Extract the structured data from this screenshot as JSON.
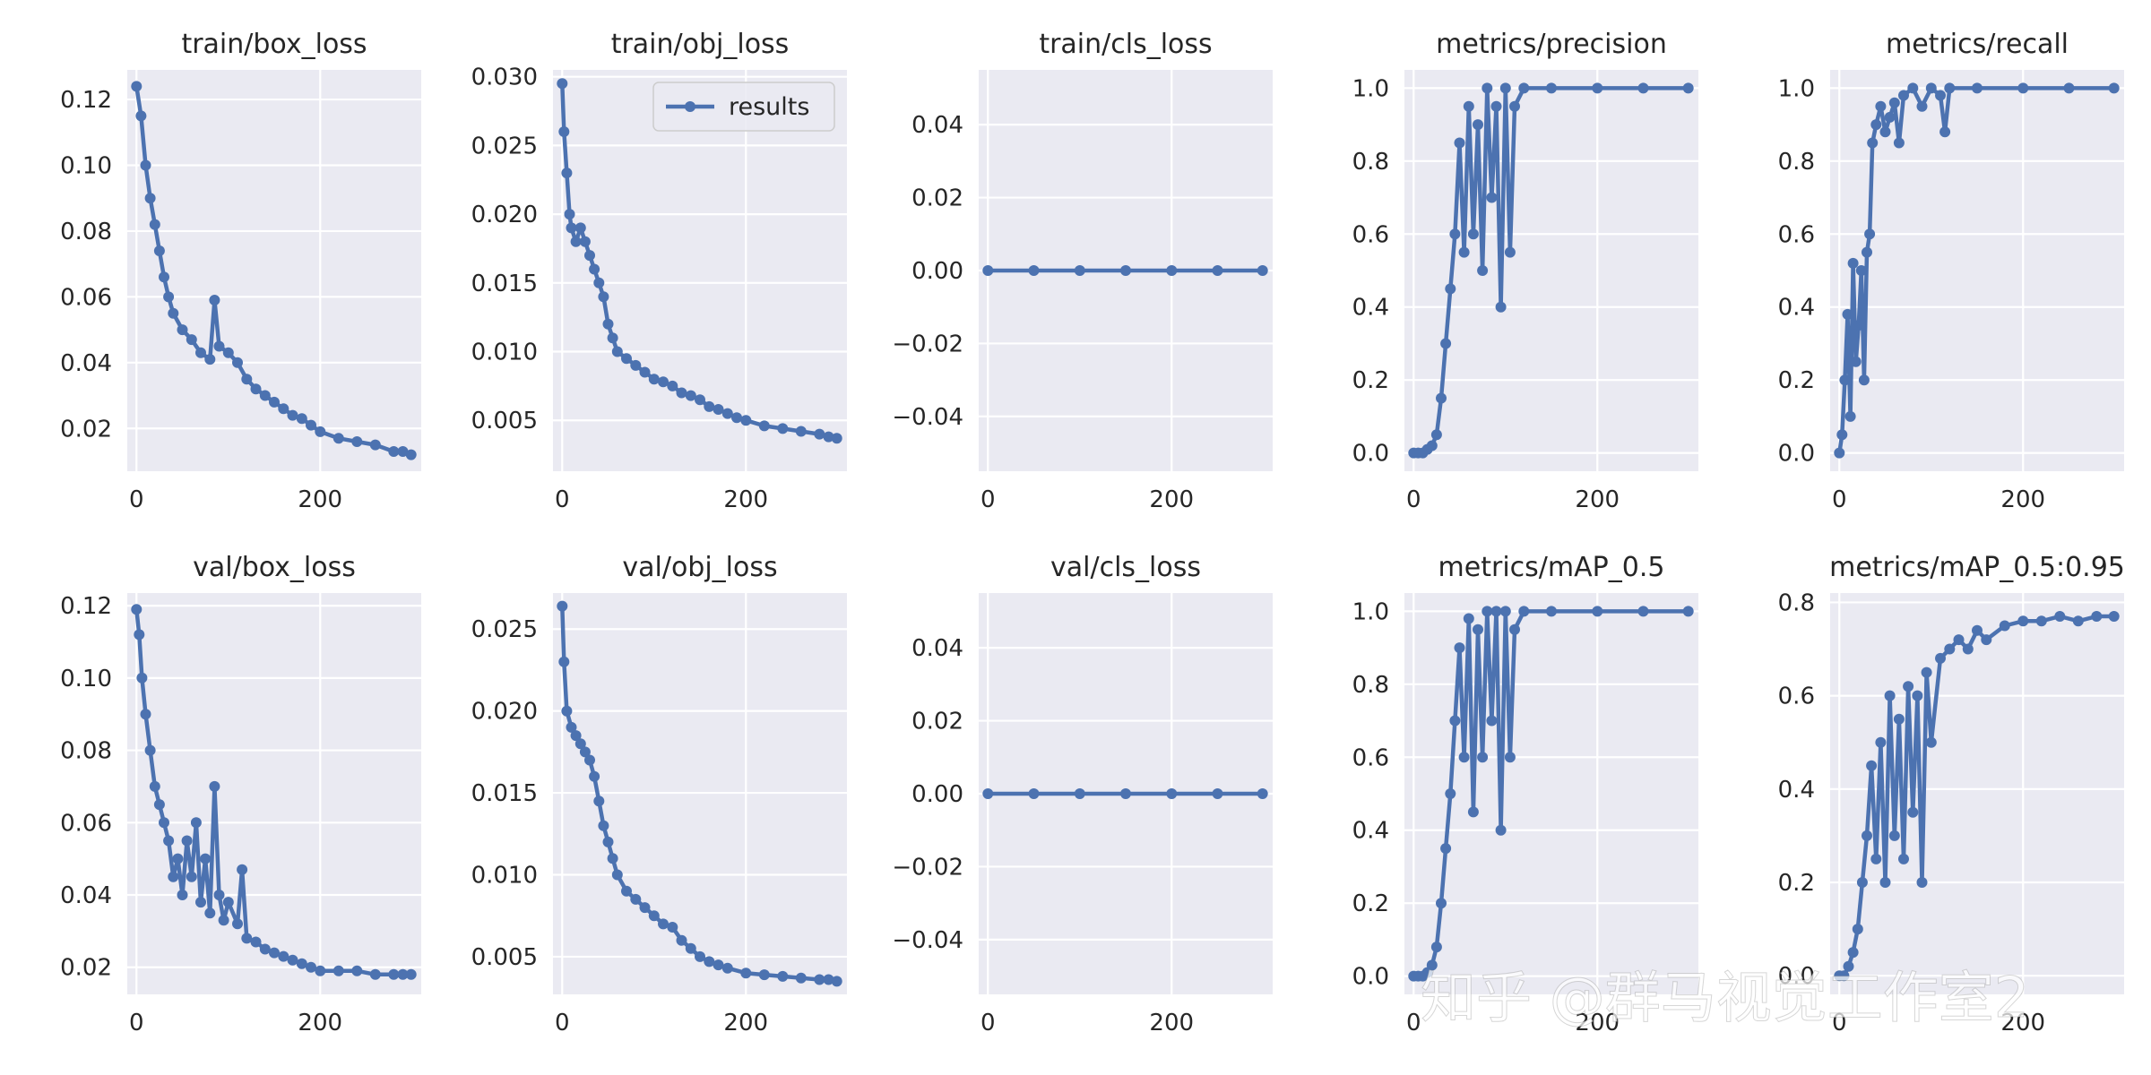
{
  "figure": {
    "watermark": "知乎 @群马视觉工作室2",
    "colors": {
      "series": "#4c72b0",
      "axes_bg": "#eaeaf2",
      "grid": "#ffffff",
      "text": "#262626"
    }
  },
  "chart_data": [
    {
      "type": "line",
      "title": "train/box_loss",
      "xlim": [
        -10,
        310
      ],
      "ylim": [
        0.007,
        0.129
      ],
      "xticks": [
        0,
        200
      ],
      "xtick_labels": [
        "0",
        "200"
      ],
      "yticks": [
        0.02,
        0.04,
        0.06,
        0.08,
        0.1,
        0.12
      ],
      "ytick_labels": [
        "0.02",
        "0.04",
        "0.06",
        "0.08",
        "0.10",
        "0.12"
      ],
      "series": [
        {
          "name": "results",
          "x": [
            0,
            5,
            10,
            15,
            20,
            25,
            30,
            35,
            40,
            50,
            60,
            70,
            80,
            85,
            90,
            100,
            110,
            120,
            130,
            140,
            150,
            160,
            170,
            180,
            190,
            200,
            220,
            240,
            260,
            280,
            290,
            299
          ],
          "y": [
            0.124,
            0.115,
            0.1,
            0.09,
            0.082,
            0.074,
            0.066,
            0.06,
            0.055,
            0.05,
            0.047,
            0.043,
            0.041,
            0.059,
            0.045,
            0.043,
            0.04,
            0.035,
            0.032,
            0.03,
            0.028,
            0.026,
            0.024,
            0.023,
            0.021,
            0.019,
            0.017,
            0.016,
            0.015,
            0.013,
            0.013,
            0.012
          ]
        }
      ]
    },
    {
      "type": "line",
      "title": "train/obj_loss",
      "xlim": [
        -10,
        310
      ],
      "ylim": [
        0.0013,
        0.0305
      ],
      "xticks": [
        0,
        200
      ],
      "xtick_labels": [
        "0",
        "200"
      ],
      "yticks": [
        0.005,
        0.01,
        0.015,
        0.02,
        0.025,
        0.03
      ],
      "ytick_labels": [
        "0.005",
        "0.010",
        "0.015",
        "0.020",
        "0.025",
        "0.030"
      ],
      "legend": {
        "position": "upper right",
        "entries": [
          "results"
        ]
      },
      "series": [
        {
          "name": "results",
          "x": [
            0,
            2,
            5,
            8,
            10,
            15,
            20,
            25,
            30,
            35,
            40,
            45,
            50,
            55,
            60,
            70,
            80,
            90,
            100,
            110,
            120,
            130,
            140,
            150,
            160,
            170,
            180,
            190,
            200,
            220,
            240,
            260,
            280,
            290,
            299
          ],
          "y": [
            0.0295,
            0.026,
            0.023,
            0.02,
            0.019,
            0.018,
            0.019,
            0.018,
            0.017,
            0.016,
            0.015,
            0.014,
            0.012,
            0.011,
            0.01,
            0.0095,
            0.009,
            0.0085,
            0.008,
            0.0078,
            0.0075,
            0.007,
            0.0068,
            0.0065,
            0.006,
            0.0058,
            0.0055,
            0.0052,
            0.005,
            0.0046,
            0.0044,
            0.0042,
            0.004,
            0.0038,
            0.0037
          ]
        }
      ]
    },
    {
      "type": "line",
      "title": "train/cls_loss",
      "xlim": [
        -10,
        310
      ],
      "ylim": [
        -0.055,
        0.055
      ],
      "xticks": [
        0,
        200
      ],
      "xtick_labels": [
        "0",
        "200"
      ],
      "yticks": [
        -0.04,
        -0.02,
        0.0,
        0.02,
        0.04
      ],
      "ytick_labels": [
        "−0.04",
        "−0.02",
        "0.00",
        "0.02",
        "0.04"
      ],
      "series": [
        {
          "name": "results",
          "x": [
            0,
            50,
            100,
            150,
            200,
            250,
            299
          ],
          "y": [
            0,
            0,
            0,
            0,
            0,
            0,
            0
          ]
        }
      ]
    },
    {
      "type": "line",
      "title": "metrics/precision",
      "xlim": [
        -10,
        310
      ],
      "ylim": [
        -0.05,
        1.05
      ],
      "xticks": [
        0,
        200
      ],
      "xtick_labels": [
        "0",
        "200"
      ],
      "yticks": [
        0.0,
        0.2,
        0.4,
        0.6,
        0.8,
        1.0
      ],
      "ytick_labels": [
        "0.0",
        "0.2",
        "0.4",
        "0.6",
        "0.8",
        "1.0"
      ],
      "series": [
        {
          "name": "results",
          "x": [
            0,
            5,
            10,
            15,
            20,
            25,
            30,
            35,
            40,
            45,
            50,
            55,
            60,
            65,
            70,
            75,
            80,
            85,
            90,
            95,
            100,
            105,
            110,
            120,
            150,
            200,
            250,
            299
          ],
          "y": [
            0.0,
            0.0,
            0.0,
            0.01,
            0.02,
            0.05,
            0.15,
            0.3,
            0.45,
            0.6,
            0.85,
            0.55,
            0.95,
            0.6,
            0.9,
            0.5,
            1.0,
            0.7,
            0.95,
            0.4,
            1.0,
            0.55,
            0.95,
            1.0,
            1.0,
            1.0,
            1.0,
            1.0
          ]
        }
      ]
    },
    {
      "type": "line",
      "title": "metrics/recall",
      "xlim": [
        -10,
        310
      ],
      "ylim": [
        -0.05,
        1.05
      ],
      "xticks": [
        0,
        200
      ],
      "xtick_labels": [
        "0",
        "200"
      ],
      "yticks": [
        0.0,
        0.2,
        0.4,
        0.6,
        0.8,
        1.0
      ],
      "ytick_labels": [
        "0.0",
        "0.2",
        "0.4",
        "0.6",
        "0.8",
        "1.0"
      ],
      "series": [
        {
          "name": "results",
          "x": [
            0,
            3,
            6,
            9,
            12,
            15,
            18,
            21,
            24,
            27,
            30,
            33,
            36,
            40,
            45,
            50,
            55,
            60,
            65,
            70,
            80,
            90,
            100,
            110,
            115,
            120,
            150,
            200,
            250,
            299
          ],
          "y": [
            0.0,
            0.05,
            0.2,
            0.38,
            0.1,
            0.52,
            0.25,
            0.35,
            0.5,
            0.2,
            0.55,
            0.6,
            0.85,
            0.9,
            0.95,
            0.88,
            0.92,
            0.96,
            0.85,
            0.98,
            1.0,
            0.95,
            1.0,
            0.98,
            0.88,
            1.0,
            1.0,
            1.0,
            1.0,
            1.0
          ]
        }
      ]
    },
    {
      "type": "line",
      "title": "val/box_loss",
      "xlim": [
        -10,
        310
      ],
      "ylim": [
        0.0125,
        0.1235
      ],
      "xticks": [
        0,
        200
      ],
      "xtick_labels": [
        "0",
        "200"
      ],
      "yticks": [
        0.02,
        0.04,
        0.06,
        0.08,
        0.1,
        0.12
      ],
      "ytick_labels": [
        "0.02",
        "0.04",
        "0.06",
        "0.08",
        "0.10",
        "0.12"
      ],
      "series": [
        {
          "name": "results",
          "x": [
            0,
            3,
            6,
            10,
            15,
            20,
            25,
            30,
            35,
            40,
            45,
            50,
            55,
            60,
            65,
            70,
            75,
            80,
            85,
            90,
            95,
            100,
            110,
            115,
            120,
            130,
            140,
            150,
            160,
            170,
            180,
            190,
            200,
            220,
            240,
            260,
            280,
            290,
            299
          ],
          "y": [
            0.119,
            0.112,
            0.1,
            0.09,
            0.08,
            0.07,
            0.065,
            0.06,
            0.055,
            0.045,
            0.05,
            0.04,
            0.055,
            0.045,
            0.06,
            0.038,
            0.05,
            0.035,
            0.07,
            0.04,
            0.033,
            0.038,
            0.032,
            0.047,
            0.028,
            0.027,
            0.025,
            0.024,
            0.023,
            0.022,
            0.021,
            0.02,
            0.019,
            0.019,
            0.019,
            0.018,
            0.018,
            0.018,
            0.018
          ]
        }
      ]
    },
    {
      "type": "line",
      "title": "val/obj_loss",
      "xlim": [
        -10,
        310
      ],
      "ylim": [
        0.0027,
        0.0272
      ],
      "xticks": [
        0,
        200
      ],
      "xtick_labels": [
        "0",
        "200"
      ],
      "yticks": [
        0.005,
        0.01,
        0.015,
        0.02,
        0.025
      ],
      "ytick_labels": [
        "0.005",
        "0.010",
        "0.015",
        "0.020",
        "0.025"
      ],
      "series": [
        {
          "name": "results",
          "x": [
            0,
            2,
            5,
            10,
            15,
            20,
            25,
            30,
            35,
            40,
            45,
            50,
            55,
            60,
            70,
            80,
            90,
            100,
            110,
            120,
            130,
            140,
            150,
            160,
            170,
            180,
            200,
            220,
            240,
            260,
            280,
            290,
            299
          ],
          "y": [
            0.0264,
            0.023,
            0.02,
            0.019,
            0.0185,
            0.018,
            0.0175,
            0.017,
            0.016,
            0.0145,
            0.013,
            0.012,
            0.011,
            0.01,
            0.009,
            0.0085,
            0.008,
            0.0075,
            0.007,
            0.0068,
            0.006,
            0.0055,
            0.005,
            0.0047,
            0.0045,
            0.0043,
            0.004,
            0.0039,
            0.0038,
            0.0037,
            0.0036,
            0.0036,
            0.0035
          ]
        }
      ]
    },
    {
      "type": "line",
      "title": "val/cls_loss",
      "xlim": [
        -10,
        310
      ],
      "ylim": [
        -0.055,
        0.055
      ],
      "xticks": [
        0,
        200
      ],
      "xtick_labels": [
        "0",
        "200"
      ],
      "yticks": [
        -0.04,
        -0.02,
        0.0,
        0.02,
        0.04
      ],
      "ytick_labels": [
        "−0.04",
        "−0.02",
        "0.00",
        "0.02",
        "0.04"
      ],
      "series": [
        {
          "name": "results",
          "x": [
            0,
            50,
            100,
            150,
            200,
            250,
            299
          ],
          "y": [
            0,
            0,
            0,
            0,
            0,
            0,
            0
          ]
        }
      ]
    },
    {
      "type": "line",
      "title": "metrics/mAP_0.5",
      "xlim": [
        -10,
        310
      ],
      "ylim": [
        -0.05,
        1.05
      ],
      "xticks": [
        0,
        200
      ],
      "xtick_labels": [
        "0",
        "200"
      ],
      "yticks": [
        0.0,
        0.2,
        0.4,
        0.6,
        0.8,
        1.0
      ],
      "ytick_labels": [
        "0.0",
        "0.2",
        "0.4",
        "0.6",
        "0.8",
        "1.0"
      ],
      "series": [
        {
          "name": "results",
          "x": [
            0,
            5,
            10,
            15,
            20,
            25,
            30,
            35,
            40,
            45,
            50,
            55,
            60,
            65,
            70,
            75,
            80,
            85,
            90,
            95,
            100,
            105,
            110,
            120,
            150,
            200,
            250,
            299
          ],
          "y": [
            0.0,
            0.0,
            0.0,
            0.01,
            0.03,
            0.08,
            0.2,
            0.35,
            0.5,
            0.7,
            0.9,
            0.6,
            0.98,
            0.45,
            0.95,
            0.6,
            1.0,
            0.7,
            1.0,
            0.4,
            1.0,
            0.6,
            0.95,
            1.0,
            1.0,
            1.0,
            1.0,
            1.0
          ]
        }
      ]
    },
    {
      "type": "line",
      "title": "metrics/mAP_0.5:0.95",
      "xlim": [
        -10,
        310
      ],
      "ylim": [
        -0.04,
        0.82
      ],
      "xticks": [
        0,
        200
      ],
      "xtick_labels": [
        "0",
        "200"
      ],
      "yticks": [
        0.0,
        0.2,
        0.4,
        0.6,
        0.8
      ],
      "ytick_labels": [
        "0.0",
        "0.2",
        "0.4",
        "0.6",
        "0.8"
      ],
      "series": [
        {
          "name": "results",
          "x": [
            0,
            5,
            10,
            15,
            20,
            25,
            30,
            35,
            40,
            45,
            50,
            55,
            60,
            65,
            70,
            75,
            80,
            85,
            90,
            95,
            100,
            110,
            120,
            130,
            140,
            150,
            160,
            180,
            200,
            220,
            240,
            260,
            280,
            299
          ],
          "y": [
            0.0,
            0.0,
            0.02,
            0.05,
            0.1,
            0.2,
            0.3,
            0.45,
            0.25,
            0.5,
            0.2,
            0.6,
            0.3,
            0.55,
            0.25,
            0.62,
            0.35,
            0.6,
            0.2,
            0.65,
            0.5,
            0.68,
            0.7,
            0.72,
            0.7,
            0.74,
            0.72,
            0.75,
            0.76,
            0.76,
            0.77,
            0.76,
            0.77,
            0.77
          ]
        }
      ]
    }
  ]
}
